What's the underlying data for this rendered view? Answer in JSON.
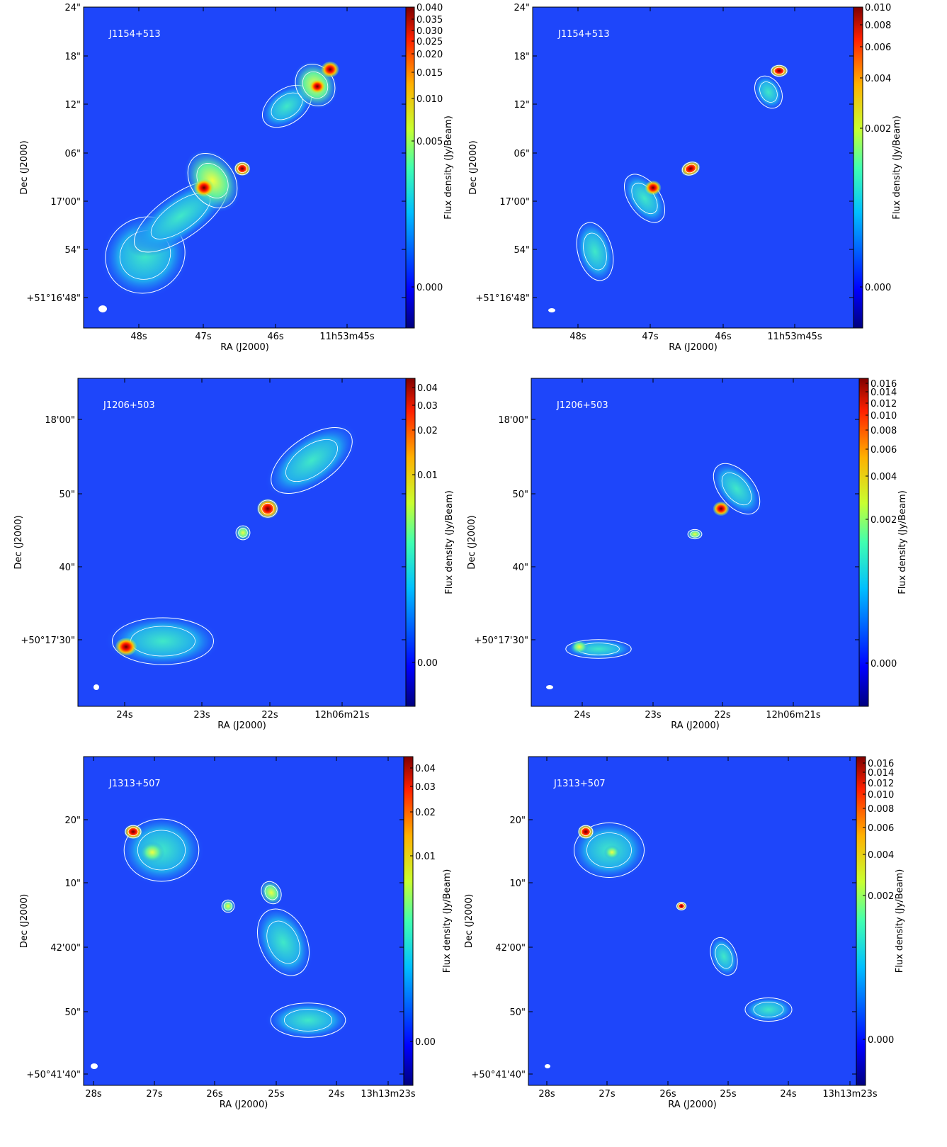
{
  "panels": [
    {
      "source": "J1154+513",
      "x_label": "RA (J2000)",
      "y_label": "Dec (J2000)",
      "colorbar_label": "Flux density (Jy/Beam)",
      "x_ticks": [
        "48s",
        "47s",
        "46s",
        "11h53m45s"
      ],
      "y_ticks": [
        "24\"",
        "18\"",
        "12\"",
        "06\"",
        "17'00\"",
        "54\"",
        "+51°16'48\""
      ],
      "colorbar_ticks": [
        "0.040",
        "0.035",
        "0.030",
        "0.025",
        "0.020",
        "0.015",
        "0.010",
        "0.005",
        "0.000"
      ]
    },
    {
      "source": "J1154+513",
      "x_label": "RA (J2000)",
      "y_label": "Dec (J2000)",
      "colorbar_label": "Flux density (Jy/Beam)",
      "x_ticks": [
        "48s",
        "47s",
        "46s",
        "11h53m45s"
      ],
      "y_ticks": [
        "24\"",
        "18\"",
        "12\"",
        "06\"",
        "17'00\"",
        "54\"",
        "+51°16'48\""
      ],
      "colorbar_ticks": [
        "0.010",
        "0.008",
        "0.006",
        "0.004",
        "0.002",
        "0.000"
      ]
    },
    {
      "source": "J1206+503",
      "x_label": "RA (J2000)",
      "y_label": "Dec (J2000)",
      "colorbar_label": "Flux density (Jy/Beam)",
      "x_ticks": [
        "24s",
        "23s",
        "22s",
        "12h06m21s"
      ],
      "y_ticks": [
        "18'00\"",
        "50\"",
        "40\"",
        "+50°17'30\""
      ],
      "colorbar_ticks": [
        "0.04",
        "0.03",
        "0.02",
        "0.01",
        "0.00"
      ]
    },
    {
      "source": "J1206+503",
      "x_label": "RA (J2000)",
      "y_label": "Dec (J2000)",
      "colorbar_label": "Flux density (Jy/Beam)",
      "x_ticks": [
        "24s",
        "23s",
        "22s",
        "12h06m21s"
      ],
      "y_ticks": [
        "18'00\"",
        "50\"",
        "40\"",
        "+50°17'30\""
      ],
      "colorbar_ticks": [
        "0.016",
        "0.014",
        "0.012",
        "0.010",
        "0.008",
        "0.006",
        "0.004",
        "0.002",
        "0.000"
      ]
    },
    {
      "source": "J1313+507",
      "x_label": "RA (J2000)",
      "y_label": "Dec (J2000)",
      "colorbar_label": "Flux density (Jy/Beam)",
      "x_ticks": [
        "28s",
        "27s",
        "26s",
        "25s",
        "24s",
        "13h13m23s"
      ],
      "y_ticks": [
        "20\"",
        "10\"",
        "42'00\"",
        "50\"",
        "+50°41'40\""
      ],
      "colorbar_ticks": [
        "0.04",
        "0.03",
        "0.02",
        "0.01",
        "0.00"
      ]
    },
    {
      "source": "J1313+507",
      "x_label": "RA (J2000)",
      "y_label": "Dec (J2000)",
      "colorbar_label": "Flux density (Jy/Beam)",
      "x_ticks": [
        "28s",
        "27s",
        "26s",
        "25s",
        "24s",
        "13h13m23s"
      ],
      "y_ticks": [
        "20\"",
        "10\"",
        "42'00\"",
        "50\"",
        "+50°41'40\""
      ],
      "colorbar_ticks": [
        "0.016",
        "0.014",
        "0.012",
        "0.010",
        "0.008",
        "0.006",
        "0.004",
        "0.002",
        "0.000"
      ]
    }
  ]
}
